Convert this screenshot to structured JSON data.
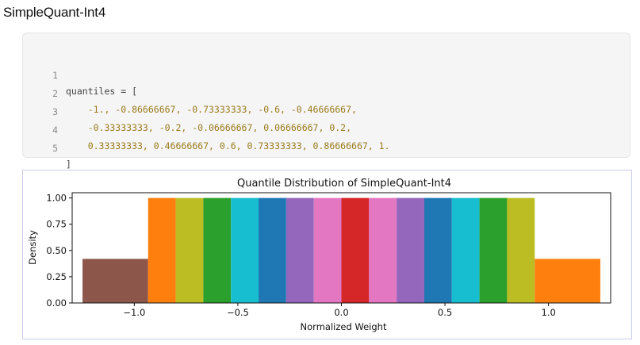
{
  "page": {
    "title": "SimpleQuant-Int4"
  },
  "code": {
    "lines": [
      {
        "no": "1",
        "text": "quantiles = ["
      },
      {
        "no": "2",
        "text": "    -1., -0.86666667, -0.73333333, -0.6, -0.46666667,"
      },
      {
        "no": "3",
        "text": "    -0.33333333, -0.2, -0.06666667, 0.06666667, 0.2,"
      },
      {
        "no": "4",
        "text": "    0.33333333, 0.46666667, 0.6, 0.73333333, 0.86666667, 1."
      },
      {
        "no": "5",
        "text": "]"
      }
    ]
  },
  "chart_data": {
    "type": "bar",
    "title": "Quantile Distribution of SimpleQuant-Int4",
    "xlabel": "Normalized Weight",
    "ylabel": "Density",
    "xlim": [
      -1.3,
      1.3
    ],
    "ylim": [
      0.0,
      1.05
    ],
    "xticks": [
      -1.0,
      -0.5,
      0.0,
      0.5,
      1.0
    ],
    "xtick_labels": [
      "−1.0",
      "−0.5",
      "0.0",
      "0.5",
      "1.0"
    ],
    "yticks": [
      0.0,
      0.25,
      0.5,
      0.75,
      1.0
    ],
    "ytick_labels": [
      "0.00",
      "0.25",
      "0.50",
      "0.75",
      "1.00"
    ],
    "grid": false,
    "bars": [
      {
        "x0": -1.25,
        "x1": -0.93333333,
        "value": 0.42,
        "color": "#8c564b"
      },
      {
        "x0": -0.93333333,
        "x1": -0.8,
        "value": 1.0,
        "color": "#ff7f0e"
      },
      {
        "x0": -0.8,
        "x1": -0.66666667,
        "value": 1.0,
        "color": "#bcbd22"
      },
      {
        "x0": -0.66666667,
        "x1": -0.53333333,
        "value": 1.0,
        "color": "#2ca02c"
      },
      {
        "x0": -0.53333333,
        "x1": -0.4,
        "value": 1.0,
        "color": "#17becf"
      },
      {
        "x0": -0.4,
        "x1": -0.26666667,
        "value": 1.0,
        "color": "#1f77b4"
      },
      {
        "x0": -0.26666667,
        "x1": -0.13333333,
        "value": 1.0,
        "color": "#9467bd"
      },
      {
        "x0": -0.13333333,
        "x1": 0.0,
        "value": 1.0,
        "color": "#e377c2"
      },
      {
        "x0": 0.0,
        "x1": 0.13333333,
        "value": 1.0,
        "color": "#d62728"
      },
      {
        "x0": 0.13333333,
        "x1": 0.26666667,
        "value": 1.0,
        "color": "#e377c2"
      },
      {
        "x0": 0.26666667,
        "x1": 0.4,
        "value": 1.0,
        "color": "#9467bd"
      },
      {
        "x0": 0.4,
        "x1": 0.53333333,
        "value": 1.0,
        "color": "#1f77b4"
      },
      {
        "x0": 0.53333333,
        "x1": 0.66666667,
        "value": 1.0,
        "color": "#17becf"
      },
      {
        "x0": 0.66666667,
        "x1": 0.8,
        "value": 1.0,
        "color": "#2ca02c"
      },
      {
        "x0": 0.8,
        "x1": 0.93333333,
        "value": 1.0,
        "color": "#bcbd22"
      },
      {
        "x0": 0.93333333,
        "x1": 1.25,
        "value": 0.42,
        "color": "#ff7f0e"
      }
    ]
  }
}
